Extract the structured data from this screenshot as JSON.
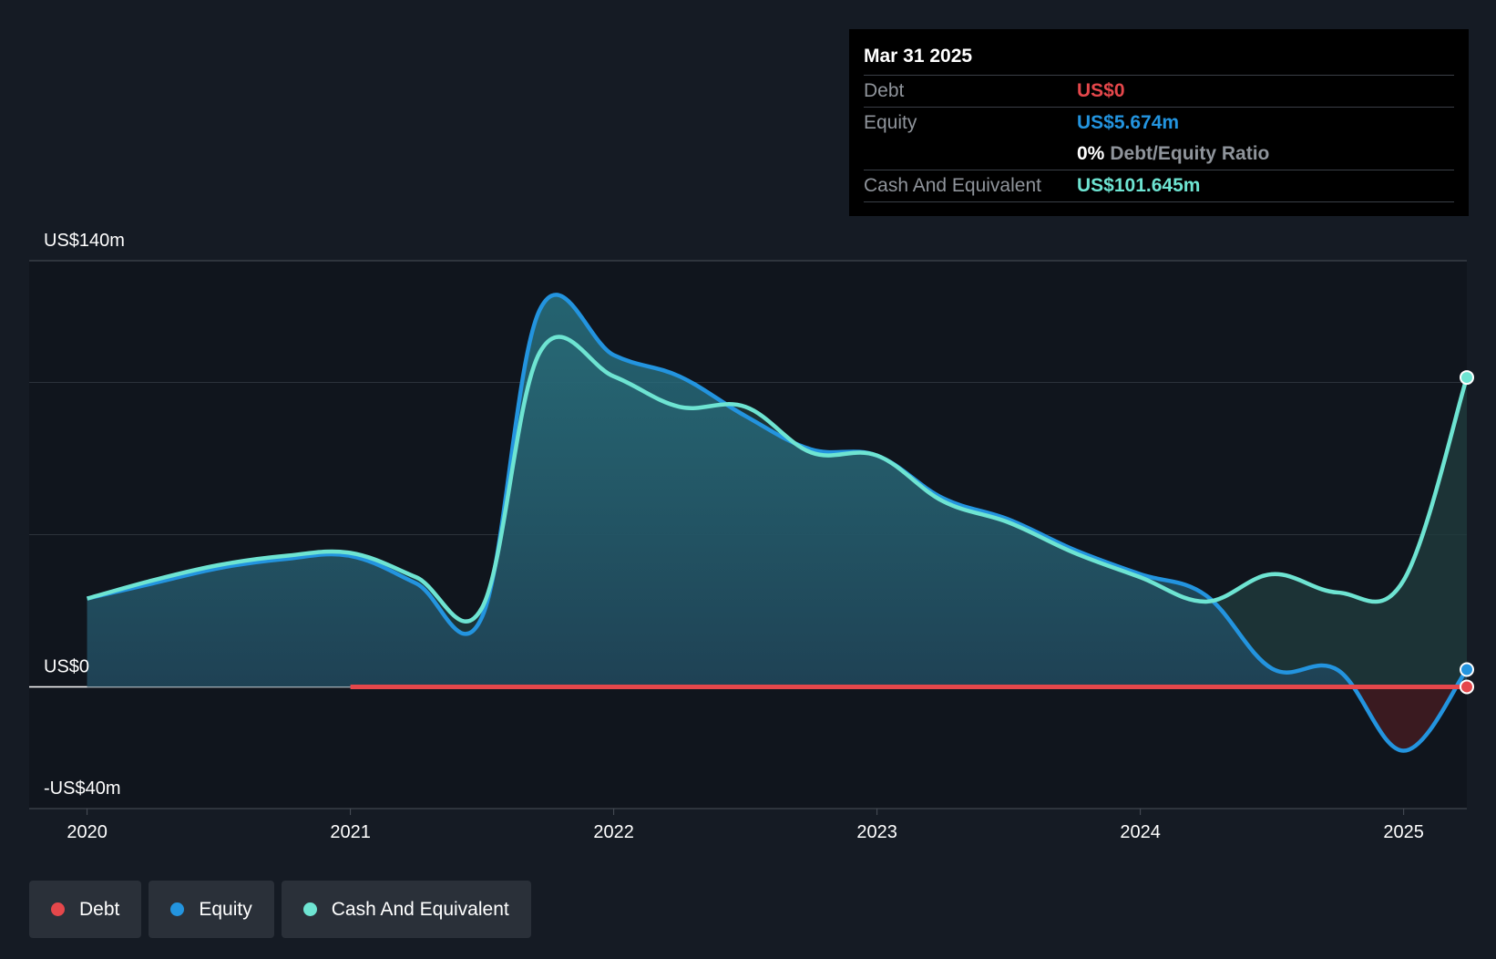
{
  "colors": {
    "debt": "#e5474b",
    "equity": "#2394df",
    "cash": "#6ee4d2",
    "text": "#ffffff",
    "muted": "#8f949b"
  },
  "tooltip": {
    "date": "Mar 31 2025",
    "debt_label": "Debt",
    "debt_value": "US$0",
    "equity_label": "Equity",
    "equity_value": "US$5.674m",
    "ratio_value": "0%",
    "ratio_label": "Debt/Equity Ratio",
    "cash_label": "Cash And Equivalent",
    "cash_value": "US$101.645m"
  },
  "legend": [
    {
      "label": "Debt",
      "color": "#e5474b"
    },
    {
      "label": "Equity",
      "color": "#2394df"
    },
    {
      "label": "Cash And Equivalent",
      "color": "#6ee4d2"
    }
  ],
  "chart_data": {
    "type": "area",
    "y_tick_labels": [
      "US$140m",
      "US$0",
      "-US$40m"
    ],
    "ylim": [
      -40,
      140
    ],
    "x_tick_labels": [
      "2020",
      "2021",
      "2022",
      "2023",
      "2024",
      "2025"
    ],
    "xlim": [
      2019.78,
      2025.24
    ],
    "grid": true,
    "legend_position": "bottom-left",
    "series": [
      {
        "name": "Debt",
        "points": [
          [
            2021.0,
            0
          ],
          [
            2025.24,
            0
          ]
        ]
      },
      {
        "name": "Equity",
        "points": [
          [
            2020.0,
            29
          ],
          [
            2020.25,
            34
          ],
          [
            2020.5,
            39
          ],
          [
            2020.75,
            42
          ],
          [
            2021.0,
            43
          ],
          [
            2021.25,
            34
          ],
          [
            2021.5,
            23
          ],
          [
            2021.72,
            124
          ],
          [
            2022.0,
            109
          ],
          [
            2022.25,
            102
          ],
          [
            2022.5,
            89
          ],
          [
            2022.75,
            78
          ],
          [
            2023.0,
            76
          ],
          [
            2023.25,
            62
          ],
          [
            2023.5,
            55
          ],
          [
            2023.75,
            45
          ],
          [
            2024.0,
            37
          ],
          [
            2024.25,
            30
          ],
          [
            2024.5,
            6
          ],
          [
            2024.75,
            5.5
          ],
          [
            2025.0,
            -21
          ],
          [
            2025.24,
            5.674
          ]
        ]
      },
      {
        "name": "Cash And Equivalent",
        "points": [
          [
            2020.0,
            29
          ],
          [
            2020.25,
            35
          ],
          [
            2020.5,
            40
          ],
          [
            2020.75,
            43
          ],
          [
            2021.0,
            44
          ],
          [
            2021.25,
            36
          ],
          [
            2021.5,
            26
          ],
          [
            2021.72,
            110
          ],
          [
            2022.0,
            102
          ],
          [
            2022.25,
            92
          ],
          [
            2022.5,
            92
          ],
          [
            2022.75,
            77
          ],
          [
            2023.0,
            76
          ],
          [
            2023.25,
            61
          ],
          [
            2023.5,
            54
          ],
          [
            2023.75,
            44
          ],
          [
            2024.0,
            36
          ],
          [
            2024.25,
            28
          ],
          [
            2024.5,
            37
          ],
          [
            2024.75,
            31
          ],
          [
            2025.0,
            35
          ],
          [
            2025.24,
            101.645
          ]
        ]
      }
    ]
  }
}
